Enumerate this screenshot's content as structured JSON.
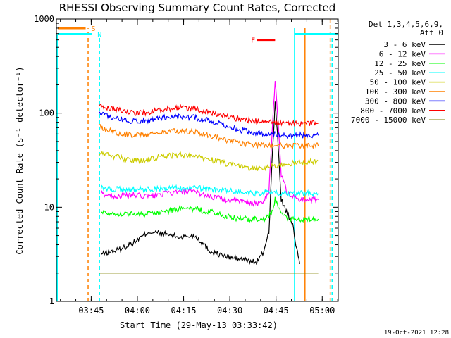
{
  "chart_data": {
    "type": "line",
    "title": "RHESSI Observing Summary Count Rates, Corrected",
    "xlabel": "Start Time (29-May-13 03:33:42)",
    "ylabel": "Corrected Count Rate (s⁻¹ detector⁻¹)",
    "y_scale": "log",
    "ylim": [
      1,
      1000
    ],
    "x_unit": "minutes since 03:33:42",
    "xlim": [
      0,
      91.5
    ],
    "y_ticks": [
      {
        "label": "1",
        "value": 1
      },
      {
        "label": "10",
        "value": 10
      },
      {
        "label": "100",
        "value": 100
      },
      {
        "label": "1000",
        "value": 1000
      }
    ],
    "x_ticks": [
      {
        "label": "03:45",
        "value": 11.3
      },
      {
        "label": "04:00",
        "value": 26.3
      },
      {
        "label": "04:15",
        "value": 41.3
      },
      {
        "label": "04:30",
        "value": 56.3
      },
      {
        "label": "04:45",
        "value": 71.3
      },
      {
        "label": "05:00",
        "value": 86.3
      }
    ],
    "legend_header": [
      "Det 1,3,4,5,6,9,",
      "Att 0"
    ],
    "series": [
      {
        "name": "3 - 6 keV",
        "color": "#000000",
        "points": [
          [
            14.5,
            3.2
          ],
          [
            20,
            3.5
          ],
          [
            25,
            4.2
          ],
          [
            30,
            5.5
          ],
          [
            35,
            5.2
          ],
          [
            40,
            4.8
          ],
          [
            45,
            5.0
          ],
          [
            50,
            3.4
          ],
          [
            55,
            3.0
          ],
          [
            60,
            2.8
          ],
          [
            65,
            2.6
          ],
          [
            67,
            3.2
          ],
          [
            69,
            5.5
          ],
          [
            70,
            30
          ],
          [
            71,
            130
          ],
          [
            72,
            45
          ],
          [
            73,
            12
          ],
          [
            75,
            8.5
          ],
          [
            77,
            6
          ],
          [
            78,
            3.5
          ],
          [
            79,
            2.5
          ]
        ]
      },
      {
        "name": "6 - 12 keV",
        "color": "#ff00ff",
        "points": [
          [
            14.5,
            14
          ],
          [
            20,
            13
          ],
          [
            25,
            13.5
          ],
          [
            30,
            13
          ],
          [
            35,
            14
          ],
          [
            40,
            14.5
          ],
          [
            45,
            14.5
          ],
          [
            50,
            13
          ],
          [
            55,
            12
          ],
          [
            60,
            11.5
          ],
          [
            65,
            11
          ],
          [
            67,
            11
          ],
          [
            69,
            15
          ],
          [
            70,
            60
          ],
          [
            71,
            230
          ],
          [
            72,
            80
          ],
          [
            73,
            22
          ],
          [
            75,
            14
          ],
          [
            77,
            13
          ],
          [
            79,
            12
          ],
          [
            85,
            12
          ]
        ]
      },
      {
        "name": "12 - 25 keV",
        "color": "#00ff00",
        "points": [
          [
            14.5,
            9
          ],
          [
            20,
            8.5
          ],
          [
            25,
            8.5
          ],
          [
            30,
            8.5
          ],
          [
            35,
            9
          ],
          [
            40,
            9.5
          ],
          [
            45,
            9.5
          ],
          [
            50,
            9
          ],
          [
            55,
            8
          ],
          [
            60,
            7.5
          ],
          [
            65,
            7.5
          ],
          [
            67,
            7.5
          ],
          [
            69,
            8
          ],
          [
            70,
            9
          ],
          [
            71,
            12
          ],
          [
            72,
            10
          ],
          [
            73,
            8.5
          ],
          [
            75,
            7.5
          ],
          [
            79,
            7.5
          ],
          [
            85,
            7.5
          ]
        ]
      },
      {
        "name": "25 - 50 keV",
        "color": "#00ffff",
        "points": [
          [
            14.5,
            16
          ],
          [
            20,
            15.5
          ],
          [
            25,
            15.5
          ],
          [
            30,
            15.5
          ],
          [
            35,
            16
          ],
          [
            40,
            16
          ],
          [
            45,
            16
          ],
          [
            50,
            15.5
          ],
          [
            55,
            15
          ],
          [
            60,
            14.5
          ],
          [
            65,
            14
          ],
          [
            70,
            14.5
          ],
          [
            75,
            14
          ],
          [
            80,
            14
          ],
          [
            85,
            14
          ]
        ]
      },
      {
        "name": "50 - 100 keV",
        "color": "#cccc00",
        "points": [
          [
            14,
            38
          ],
          [
            20,
            34
          ],
          [
            25,
            31
          ],
          [
            30,
            32
          ],
          [
            35,
            35
          ],
          [
            40,
            36
          ],
          [
            45,
            35
          ],
          [
            50,
            32
          ],
          [
            55,
            29
          ],
          [
            60,
            27
          ],
          [
            65,
            26
          ],
          [
            70,
            27
          ],
          [
            75,
            29
          ],
          [
            80,
            30
          ],
          [
            85,
            31
          ]
        ]
      },
      {
        "name": "100 - 300 keV",
        "color": "#ff8000",
        "points": [
          [
            14,
            72
          ],
          [
            20,
            62
          ],
          [
            25,
            58
          ],
          [
            30,
            60
          ],
          [
            35,
            63
          ],
          [
            40,
            65
          ],
          [
            45,
            63
          ],
          [
            50,
            58
          ],
          [
            55,
            52
          ],
          [
            60,
            48
          ],
          [
            65,
            46
          ],
          [
            70,
            45
          ],
          [
            75,
            45
          ],
          [
            80,
            45
          ],
          [
            85,
            45
          ]
        ]
      },
      {
        "name": "300 - 800 keV",
        "color": "#0000ff",
        "points": [
          [
            14,
            100
          ],
          [
            20,
            88
          ],
          [
            25,
            82
          ],
          [
            30,
            85
          ],
          [
            35,
            90
          ],
          [
            40,
            92
          ],
          [
            45,
            90
          ],
          [
            50,
            83
          ],
          [
            55,
            73
          ],
          [
            60,
            66
          ],
          [
            65,
            62
          ],
          [
            70,
            60
          ],
          [
            75,
            58
          ],
          [
            80,
            58
          ],
          [
            85,
            58
          ]
        ]
      },
      {
        "name": "800 - 7000 keV",
        "color": "#ff0000",
        "points": [
          [
            14,
            118
          ],
          [
            20,
            108
          ],
          [
            25,
            100
          ],
          [
            30,
            102
          ],
          [
            35,
            110
          ],
          [
            40,
            115
          ],
          [
            45,
            110
          ],
          [
            50,
            102
          ],
          [
            55,
            92
          ],
          [
            60,
            86
          ],
          [
            65,
            82
          ],
          [
            70,
            80
          ],
          [
            75,
            78
          ],
          [
            80,
            78
          ],
          [
            85,
            78
          ]
        ]
      },
      {
        "name": "7000 - 15000 keV",
        "color": "#808000",
        "points": [
          [
            14,
            2
          ],
          [
            45,
            2
          ],
          [
            85,
            2
          ]
        ]
      }
    ],
    "coverage_bars": [
      {
        "label": "S",
        "color": "#ff8000",
        "x0": 0.5,
        "x1": 9.5,
        "y": 800
      },
      {
        "label": "N",
        "color": "#00ffff",
        "x0": 0.5,
        "x1": 11.5,
        "y": 690
      },
      {
        "label": "F",
        "color": "#ff0000",
        "x0": 65,
        "x1": 71,
        "y": 600
      }
    ],
    "vertical_lines": [
      {
        "color": "#00ffff",
        "x": 0.3,
        "dash": false,
        "y_top": 690
      },
      {
        "color": "#ff8000",
        "x": 10.3,
        "dash": true,
        "y_top": 800
      },
      {
        "color": "#00ffff",
        "x": 14.0,
        "dash": true,
        "y_top": 690
      },
      {
        "color": "#00ffff",
        "x": 77.3,
        "dash": false,
        "y_top": 800
      },
      {
        "color": "#ff8000",
        "x": 80.7,
        "dash": false,
        "y_top": 800
      },
      {
        "color": "#ff8000",
        "x": 88.9,
        "dash": true,
        "y_top": 1000
      },
      {
        "color": "#00ffff",
        "x": 89.5,
        "dash": true,
        "y_top": 690
      }
    ],
    "saa_cap": {
      "color": "#00ffff",
      "x0": 77.3,
      "x1": 91.5,
      "y": 690
    },
    "timestamp": "19-Oct-2021 12:28"
  }
}
